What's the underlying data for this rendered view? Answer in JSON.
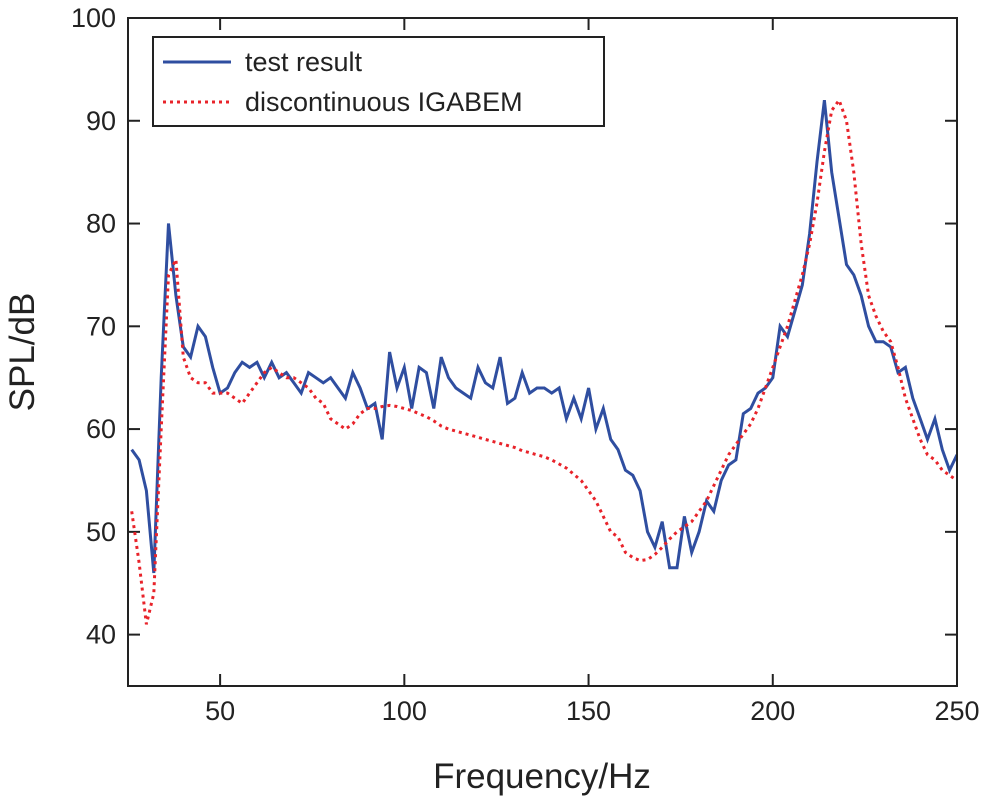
{
  "chart_data": {
    "type": "line",
    "xlabel": "Frequency/Hz",
    "ylabel": "SPL/dB",
    "xlim": [
      25,
      250
    ],
    "ylim": [
      35,
      100
    ],
    "xticks": [
      50,
      100,
      150,
      200,
      250
    ],
    "yticks": [
      40,
      50,
      60,
      70,
      80,
      90,
      100
    ],
    "legend": "upper left",
    "x": [
      26,
      28,
      30,
      32,
      34,
      36,
      38,
      40,
      42,
      44,
      46,
      48,
      50,
      52,
      54,
      56,
      58,
      60,
      62,
      64,
      66,
      68,
      70,
      72,
      74,
      76,
      78,
      80,
      82,
      84,
      86,
      88,
      90,
      92,
      94,
      96,
      98,
      100,
      102,
      104,
      106,
      108,
      110,
      112,
      114,
      116,
      118,
      120,
      122,
      124,
      126,
      128,
      130,
      132,
      134,
      136,
      138,
      140,
      142,
      144,
      146,
      148,
      150,
      152,
      154,
      156,
      158,
      160,
      162,
      164,
      166,
      168,
      170,
      172,
      174,
      176,
      178,
      180,
      182,
      184,
      186,
      188,
      190,
      192,
      194,
      196,
      198,
      200,
      202,
      204,
      206,
      208,
      210,
      212,
      214,
      216,
      218,
      220,
      222,
      224,
      226,
      228,
      230,
      232,
      234,
      236,
      238,
      240,
      242,
      244,
      246,
      248,
      250
    ],
    "series": [
      {
        "name": "test result",
        "color": "#2f4ea0",
        "dash": "solid",
        "values": [
          58,
          57,
          54,
          46,
          65,
          80,
          73,
          68,
          67,
          70,
          69,
          66,
          63.5,
          64,
          65.5,
          66.5,
          66,
          66.5,
          65,
          66.5,
          65,
          65.5,
          64.5,
          63.5,
          65.5,
          65,
          64.5,
          65,
          64,
          63,
          65.5,
          64,
          62,
          62.5,
          59,
          67.5,
          64,
          66,
          62,
          66,
          65.5,
          62,
          67,
          65,
          64,
          63.5,
          63,
          66,
          64.5,
          64,
          67,
          62.5,
          63,
          65.5,
          63.5,
          64,
          64,
          63.5,
          64,
          61,
          63,
          61,
          64,
          60,
          62,
          59,
          58,
          56,
          55.5,
          54,
          50,
          48.5,
          51,
          46.5,
          46.5,
          51.5,
          48,
          50,
          53,
          52,
          55,
          56.5,
          57,
          61.5,
          62,
          63.5,
          64,
          65,
          70,
          69,
          71.5,
          74,
          79,
          86,
          92,
          85,
          80.5,
          76,
          75,
          73,
          70,
          68.5,
          68.5,
          68,
          65.5,
          66,
          63,
          61,
          59,
          61,
          58,
          56,
          57.5
        ]
      },
      {
        "name": "discontinuous IGABEM",
        "color": "#e8232a",
        "dash": "dotted",
        "values": [
          52,
          47,
          41,
          44,
          60,
          75,
          76.5,
          67,
          65,
          64.5,
          64.5,
          63.5,
          63.5,
          63.5,
          63,
          62.5,
          63.5,
          64.5,
          65.5,
          66,
          65.5,
          65,
          65,
          64.5,
          64,
          63,
          62.5,
          61,
          60.5,
          60,
          60.5,
          61.5,
          62,
          62,
          62.2,
          62.3,
          62.2,
          62,
          61.8,
          61.5,
          61.2,
          60.8,
          60.3,
          60,
          59.8,
          59.6,
          59.4,
          59.2,
          59,
          58.8,
          58.6,
          58.4,
          58.2,
          57.9,
          57.7,
          57.5,
          57.3,
          57,
          56.6,
          56.2,
          55.6,
          55,
          54,
          53,
          51.5,
          50,
          49.5,
          48,
          47.5,
          47.2,
          47.3,
          47.8,
          48.5,
          49.3,
          50,
          50.5,
          51,
          52,
          53,
          54.5,
          56,
          57.5,
          58.5,
          59.5,
          60.5,
          62,
          64,
          66,
          68,
          70,
          72.5,
          75,
          78,
          82,
          87,
          91,
          92,
          90,
          85,
          78,
          73,
          71,
          69.5,
          68.5,
          66,
          63,
          61,
          59,
          57.5,
          57,
          56,
          55.5,
          55
        ]
      }
    ]
  }
}
